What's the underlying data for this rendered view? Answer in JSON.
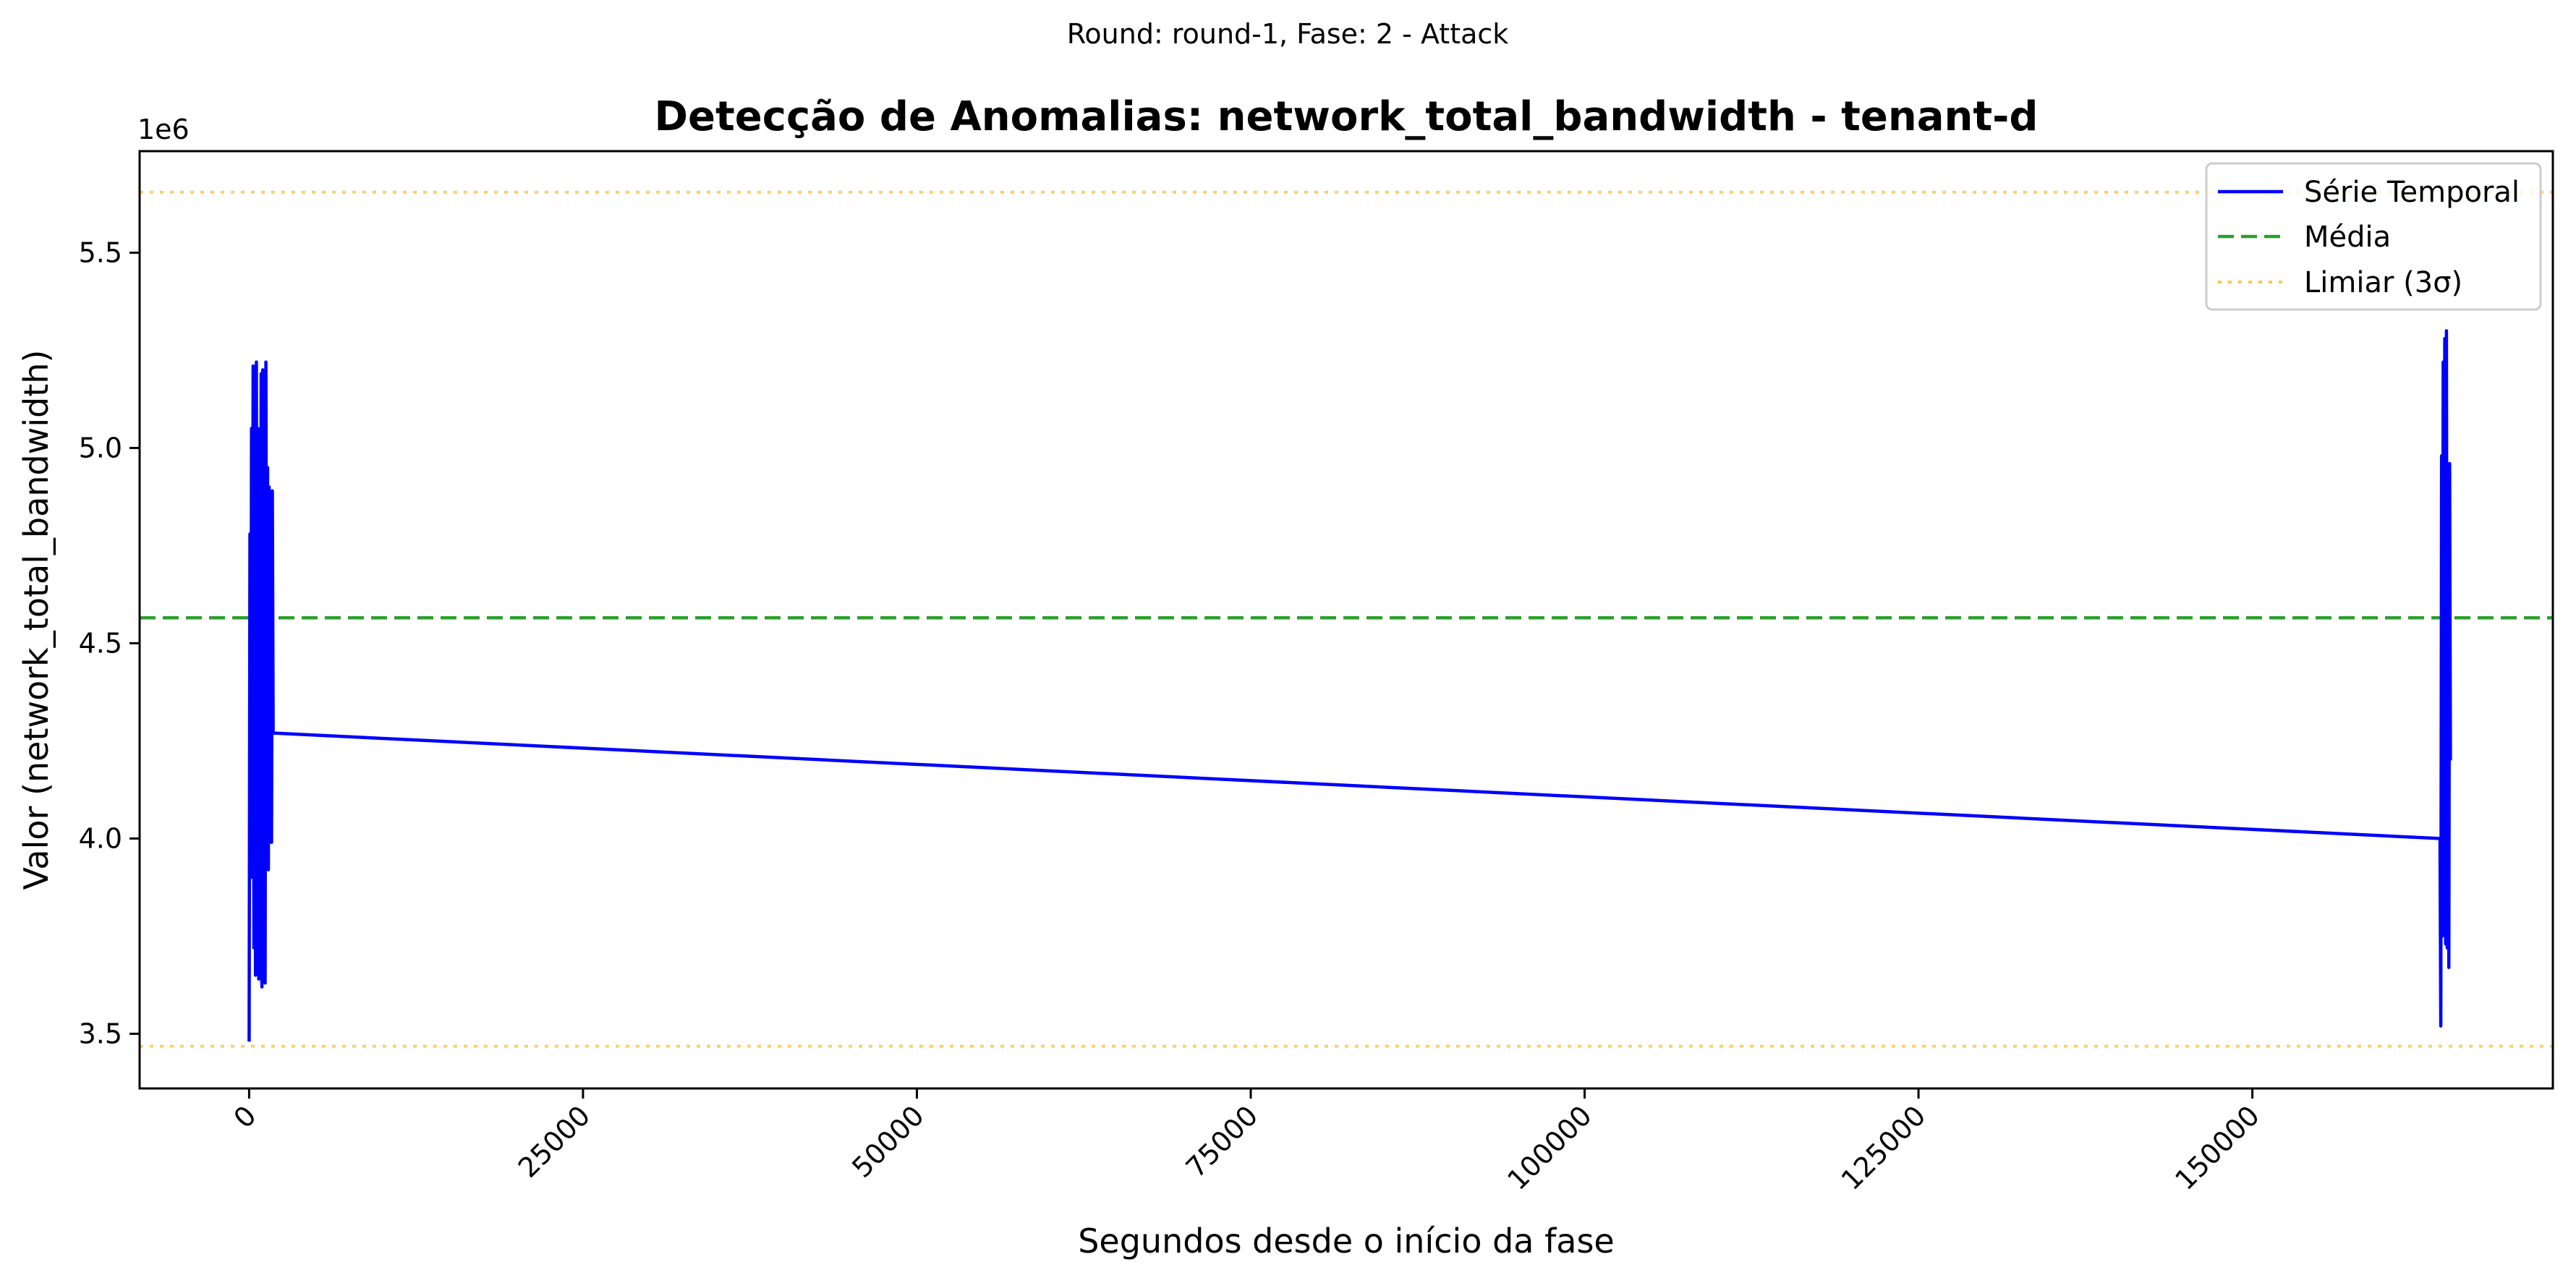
{
  "suptitle": "Round: round-1, Fase: 2 - Attack",
  "chart_data": {
    "type": "line",
    "title": "Detecção de Anomalias: network_total_bandwidth - tenant-d",
    "xlabel": "Segundos desde o início da fase",
    "ylabel": "Valor (network_total_bandwidth)",
    "y_offset_label": "1e6",
    "xlim": [
      -8200,
      172500
    ],
    "ylim": [
      3.36,
      5.76
    ],
    "x_ticks": [
      0,
      25000,
      50000,
      75000,
      100000,
      125000,
      150000
    ],
    "x_tick_labels": [
      "0",
      "25000",
      "50000",
      "75000",
      "100000",
      "125000",
      "150000"
    ],
    "y_ticks": [
      3.5,
      4.0,
      4.5,
      5.0,
      5.5
    ],
    "y_tick_labels": [
      "3.5",
      "4.0",
      "4.5",
      "5.0",
      "5.5"
    ],
    "grid": false,
    "legend_position": "top-right",
    "series": [
      {
        "name": "Série Temporal",
        "style": "solid",
        "color": "#0000ff",
        "x": [
          0,
          60,
          120,
          180,
          240,
          300,
          360,
          420,
          480,
          540,
          600,
          660,
          720,
          780,
          840,
          900,
          960,
          1020,
          1080,
          1140,
          1200,
          1260,
          1320,
          1380,
          1440,
          1500,
          1560,
          1620,
          1680,
          1740,
          1800,
          164050,
          164110,
          164170,
          164230,
          164290,
          164350,
          164410,
          164470,
          164530,
          164590,
          164650,
          164710,
          164770,
          164830
        ],
        "y": [
          3.48,
          4.78,
          3.9,
          5.05,
          4.0,
          5.21,
          3.72,
          4.95,
          3.65,
          5.22,
          4.1,
          5.05,
          3.64,
          4.85,
          3.8,
          5.19,
          3.62,
          5.2,
          3.9,
          4.7,
          3.63,
          5.22,
          4.0,
          4.95,
          3.92,
          4.9,
          4.05,
          4.85,
          3.99,
          4.89,
          4.27,
          4.0,
          3.52,
          4.98,
          3.75,
          5.22,
          3.8,
          5.28,
          3.73,
          5.3,
          3.72,
          4.75,
          3.67,
          4.96,
          4.2
        ]
      },
      {
        "name": "Média",
        "style": "dashed",
        "color": "#2ca02c",
        "y": 4.565
      },
      {
        "name": "Limiar (3σ)",
        "style": "dotted",
        "color": "#ffc64d",
        "y_values": [
          5.655,
          3.468
        ]
      }
    ]
  }
}
